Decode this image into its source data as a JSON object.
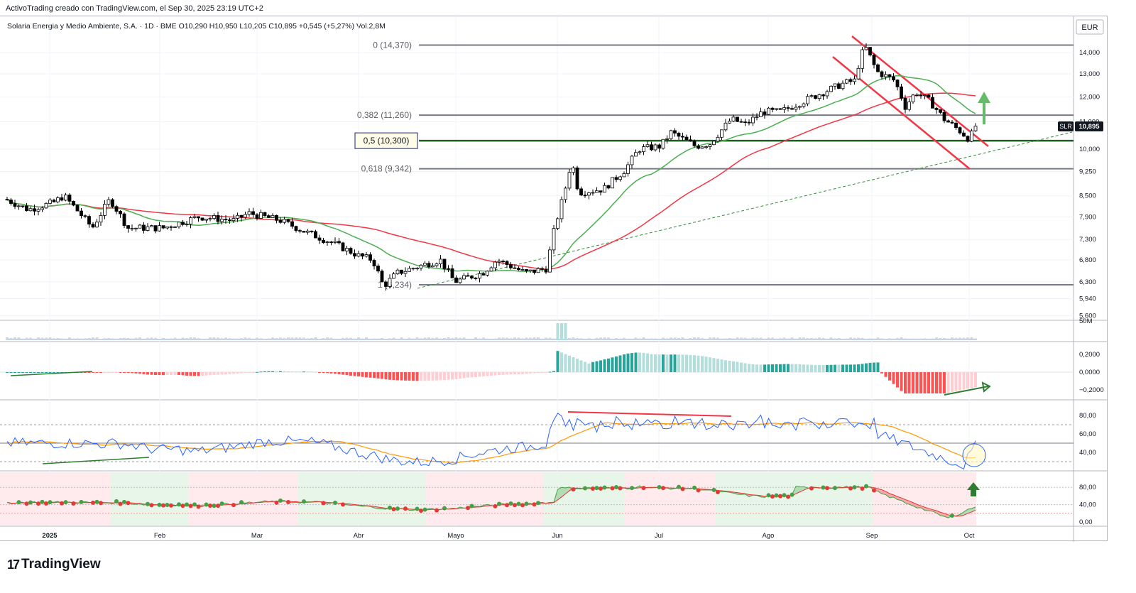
{
  "header": {
    "attribution": "ActivoTrading creado con TradingView.com, el Sep 30, 2025 23:19 UTC+2"
  },
  "symbol_line": {
    "name": "Solaria Energia y Medio Ambiente, S.A.",
    "interval": "1D",
    "exchange": "BME",
    "ohlc": "O10,290 H10,950 L10,205 C10,895 +0,545 (+5,27%) Vol.2,8M",
    "full": "Solaria Energia y Medio Ambiente, S.A. · 1D · BME  O10,290  H10,950  L10,205  C10,895  +0,545 (+5,27%)  Vol.2,8M"
  },
  "currency": "EUR",
  "ticker_badge": "SLR",
  "last_price": "10,895",
  "colors": {
    "up": "#26a69a",
    "down": "#ef5350",
    "candle": "#000000",
    "ma_fast": "#4caf50",
    "ma_slow": "#f23645",
    "fib_line": "#787b86",
    "fib_key": "#1b5e20",
    "channel": "#f23645",
    "arrow_green": "#66bb6a",
    "rsi_line": "#2962ff",
    "rsi_ma": "#ff9800",
    "hist_up": "#26a69a",
    "hist_up_light": "#b2dfdb",
    "hist_down": "#ff5252",
    "hist_down_light": "#ffcdd2"
  },
  "fib_levels": [
    {
      "label": "0 (14,370)",
      "value": 14.37
    },
    {
      "label": "0,382 (11,260)",
      "value": 11.26
    },
    {
      "label": "0,5 (10,300)",
      "value": 10.3
    },
    {
      "label": "0,618 (9,342)",
      "value": 9.342
    },
    {
      "label": "1 (6,234)",
      "value": 6.234
    }
  ],
  "x_axis_labels": [
    "2025",
    "Feb",
    "Mar",
    "Abr",
    "Mayo",
    "Jun",
    "Jul",
    "Ago",
    "Sep",
    "Oct"
  ],
  "price_axis_labels": [
    "14,000",
    "13,000",
    "12,000",
    "11,000",
    "10,000",
    "9,250",
    "8,500",
    "7,900",
    "7,300",
    "6,800",
    "6,300",
    "5,940",
    "5,600"
  ],
  "volume_axis_label": "50M",
  "macd_axis_labels": [
    "0,2000",
    "0,0000",
    "−0,2000"
  ],
  "rsi_axis_labels": [
    "80,00",
    "60,00",
    "40,00"
  ],
  "osc_axis_labels": [
    "80,00",
    "40,00",
    "0,00"
  ],
  "chart_data": {
    "type": "line",
    "title": "Solaria Energia y Medio Ambiente, S.A. · 1D · BME",
    "x": [
      "2025",
      "Feb",
      "Mar",
      "Abr",
      "Mayo",
      "Jun",
      "Jul",
      "Ago",
      "Sep",
      "Oct"
    ],
    "series": [
      {
        "name": "SLR",
        "values": [
          8.4,
          7.6,
          8.1,
          6.5,
          6.3,
          8.9,
          10.3,
          11.4,
          14.2,
          10.895
        ]
      }
    ],
    "ylim": [
      5.6,
      14.7
    ],
    "yscale": "log",
    "grid": true,
    "legend": "top-left"
  },
  "brand": "TradingView"
}
